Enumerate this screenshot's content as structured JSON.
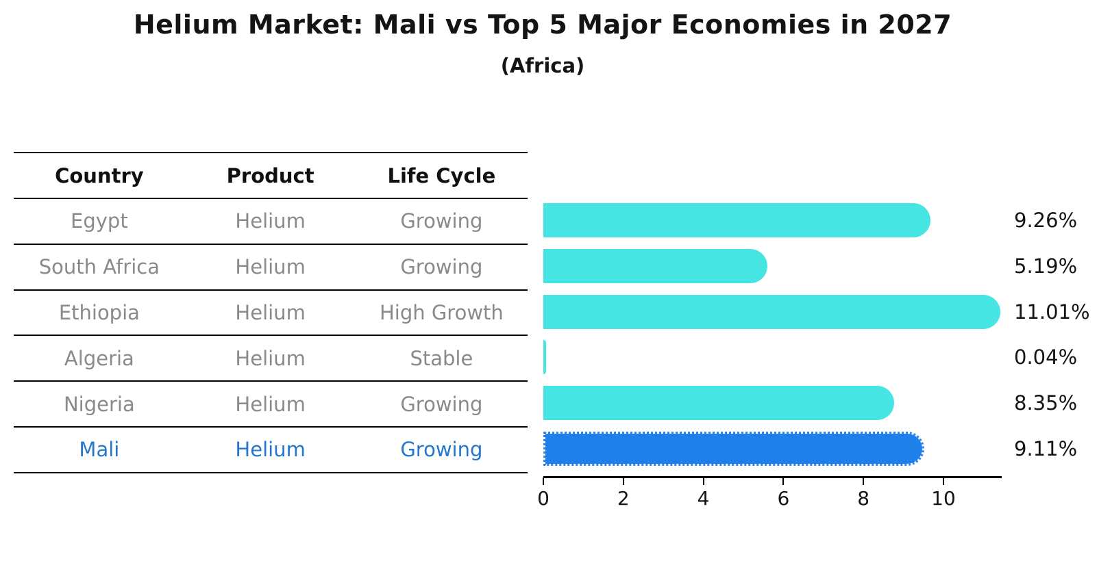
{
  "title": "Helium Market: Mali vs Top 5 Major Economies in 2027",
  "subtitle": "(Africa)",
  "table": {
    "headers": [
      "Country",
      "Product",
      "Life Cycle"
    ],
    "rows": [
      {
        "country": "Egypt",
        "product": "Helium",
        "life_cycle": "Growing",
        "highlight": false
      },
      {
        "country": "South Africa",
        "product": "Helium",
        "life_cycle": "Growing",
        "highlight": false
      },
      {
        "country": "Ethiopia",
        "product": "Helium",
        "life_cycle": "High Growth",
        "highlight": false
      },
      {
        "country": "Algeria",
        "product": "Helium",
        "life_cycle": "Stable",
        "highlight": false
      },
      {
        "country": "Nigeria",
        "product": "Helium",
        "life_cycle": "Growing",
        "highlight": false
      },
      {
        "country": "Mali",
        "product": "Helium",
        "life_cycle": "Growing",
        "highlight": true
      }
    ]
  },
  "chart_data": {
    "type": "bar",
    "orientation": "horizontal",
    "title": "Helium Market: Mali vs Top 5 Major Economies in 2027",
    "subtitle": "(Africa)",
    "categories": [
      "Egypt",
      "South Africa",
      "Ethiopia",
      "Algeria",
      "Nigeria",
      "Mali"
    ],
    "values": [
      9.26,
      5.19,
      11.01,
      0.04,
      8.35,
      9.11
    ],
    "value_labels": [
      "9.26%",
      "5.19%",
      "11.01%",
      "0.04%",
      "8.35%",
      "9.11%"
    ],
    "x_ticks": [
      0,
      2,
      4,
      6,
      8,
      10
    ],
    "xlim": [
      0,
      11.45
    ],
    "grid": false,
    "legend": false,
    "bar_color": "#46e5e4",
    "highlight_bar_color": "#1f80ea",
    "highlight_index": 5,
    "highlight_text_color": "#2577ce"
  }
}
